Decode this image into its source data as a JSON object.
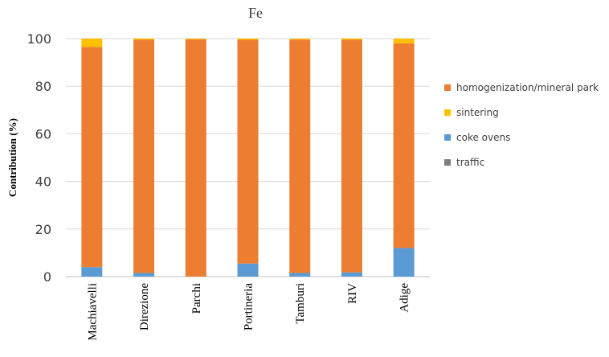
{
  "chart_data": {
    "type": "bar",
    "stacked": true,
    "title": "Fe",
    "xlabel": "",
    "ylabel": "Contribution (%)",
    "ylim": [
      0,
      100
    ],
    "yticks": [
      0,
      20,
      40,
      60,
      80,
      100
    ],
    "grid": true,
    "legend_position": "right",
    "categories": [
      "Machiavelli",
      "Direzione",
      "Parchi",
      "Portineria",
      "Tamburi",
      "RIV",
      "Adige"
    ],
    "series": [
      {
        "name": "traffic",
        "color": "#7f7f7f",
        "values": [
          0,
          0,
          0,
          0,
          0,
          0,
          0
        ]
      },
      {
        "name": "coke ovens",
        "color": "#5b9bd5",
        "values": [
          4,
          1.5,
          0,
          5.5,
          1.5,
          1.8,
          12
        ]
      },
      {
        "name": "homogenization/mineral park",
        "color": "#ed7d31",
        "values": [
          92.5,
          98,
          99.7,
          94,
          98.1,
          97.7,
          86
        ]
      },
      {
        "name": "sintering",
        "color": "#ffc000",
        "values": [
          3.5,
          0.5,
          0.3,
          0.5,
          0.4,
          0.5,
          2
        ]
      }
    ],
    "legend_order": [
      "homogenization/mineral park",
      "sintering",
      "coke ovens",
      "traffic"
    ]
  }
}
